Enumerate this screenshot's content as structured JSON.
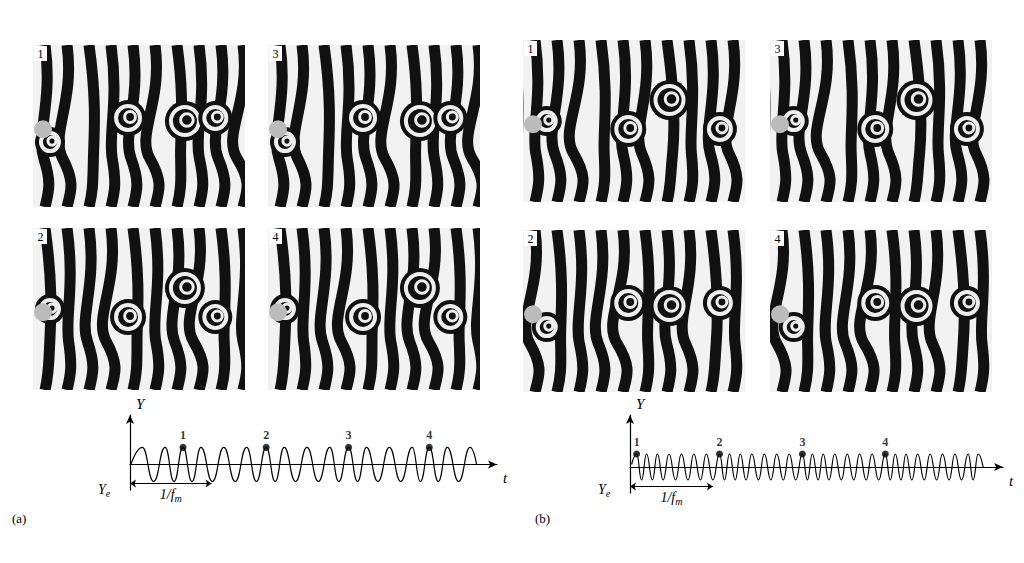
{
  "photo_groups": [
    {
      "frames": [
        "1",
        "2",
        "3",
        "4"
      ]
    },
    {
      "frames": [
        "1",
        "2",
        "3",
        "4"
      ]
    }
  ],
  "chart_data": [
    {
      "type": "line",
      "panel_label": "(a)",
      "x_label": "t",
      "y_label": "Y",
      "y_e_label": {
        "text": "Y",
        "sub": "e"
      },
      "period": {
        "from": 0,
        "to": 1,
        "label": {
          "text": "1/f",
          "sub": "m"
        }
      },
      "color": "#000000",
      "tick_labels": false,
      "xlim": [
        0,
        4.5
      ],
      "ylim": [
        -1.5,
        2.9
      ],
      "x": [
        0.01,
        0.15,
        0.29,
        0.43,
        0.54,
        0.65,
        0.76,
        0.87,
        1.01,
        1.15,
        1.29,
        1.43,
        1.55,
        1.67,
        1.78,
        1.89,
        2.03,
        2.17,
        2.31,
        2.45,
        2.56,
        2.68,
        2.79,
        2.9,
        3.04,
        3.18,
        3.32,
        3.46,
        3.56,
        3.67,
        3.78,
        3.89,
        4.03,
        4.17,
        4.25
      ],
      "values": [
        0,
        1,
        -1,
        1,
        -1,
        1,
        -1,
        1,
        -1,
        1,
        -1,
        1,
        -1,
        1,
        -1,
        1,
        -1,
        1,
        -1,
        1,
        -1,
        1,
        -1,
        1,
        -1,
        1,
        -1,
        1,
        -1,
        1,
        -1,
        1,
        -1,
        1,
        0
      ],
      "markers": {
        "labels": [
          "1",
          "2",
          "3",
          "4"
        ],
        "x": [
          0.65,
          1.67,
          2.68,
          3.67
        ],
        "values": [
          1,
          1,
          1,
          1
        ]
      }
    },
    {
      "type": "line",
      "panel_label": "(b)",
      "x_label": "t",
      "y_label": "Y",
      "y_e_label": {
        "text": "Y",
        "sub": "e"
      },
      "period": {
        "from": 0,
        "to": 1,
        "label": {
          "text": "1/f",
          "sub": "m"
        }
      },
      "color": "#000000",
      "tick_labels": false,
      "xlim": [
        0,
        4.5
      ],
      "ylim": [
        -2,
        4
      ],
      "x": [
        0.02,
        0.08,
        0.14,
        0.2,
        0.27,
        0.33,
        0.4,
        0.47,
        0.55,
        0.62,
        0.7,
        0.77,
        0.85,
        0.92,
        1.0,
        1.08,
        1.14,
        1.2,
        1.27,
        1.33,
        1.4,
        1.47,
        1.55,
        1.62,
        1.7,
        1.77,
        1.85,
        1.92,
        2.0,
        2.08,
        2.14,
        2.2,
        2.27,
        2.33,
        2.4,
        2.47,
        2.55,
        2.62,
        2.7,
        2.77,
        2.85,
        2.92,
        3.0,
        3.08,
        3.14,
        3.2,
        3.27,
        3.33,
        3.4,
        3.47,
        3.55,
        3.62,
        3.7,
        3.77,
        3.85,
        3.92,
        4.0,
        4.08,
        4.14,
        4.2,
        4.26
      ],
      "values": [
        0.2,
        1,
        -1,
        1,
        -1,
        1,
        -1,
        1,
        -1,
        1,
        -1,
        1,
        -1,
        1,
        -1,
        1,
        -1,
        1,
        -1,
        1,
        -1,
        1,
        -1,
        1,
        -1,
        1,
        -1,
        1,
        -1,
        1,
        -1,
        1,
        -1,
        1,
        -1,
        1,
        -1,
        1,
        -1,
        1,
        -1,
        1,
        -1,
        1,
        -1,
        1,
        -1,
        1,
        -1,
        1,
        -1,
        1,
        -1,
        1,
        -1,
        1,
        -1,
        1,
        -1,
        1,
        0
      ],
      "markers": {
        "labels": [
          "1",
          "2",
          "3",
          "4"
        ],
        "x": [
          0.08,
          1.08,
          2.08,
          3.08
        ],
        "values": [
          1,
          1,
          1,
          1
        ]
      }
    }
  ]
}
